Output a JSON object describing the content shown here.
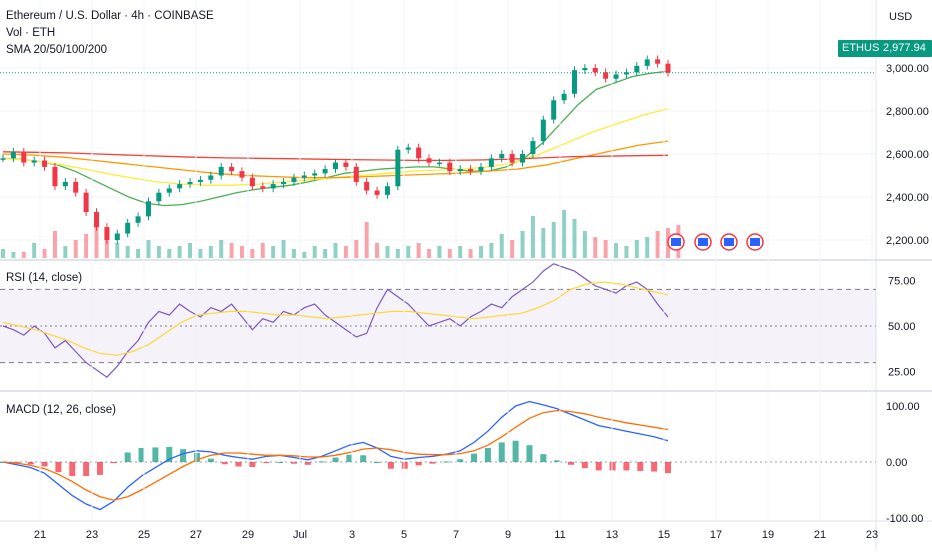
{
  "header": {
    "title": "Ethereum / U.S. Dollar · 4h · COINBASE",
    "volume_label": "Vol · ETH",
    "sma_label": "SMA 20/50/100/200",
    "currency": "USD"
  },
  "price_tags": {
    "symbol": "ETHUSD",
    "last": "2,977.94"
  },
  "rsi_panel": {
    "label": "RSI (14, close)"
  },
  "macd_panel": {
    "label": "MACD (12, 26, close)"
  },
  "colors": {
    "up": "#089981",
    "down": "#f23645",
    "sma20": "#4caf50",
    "sma50": "#ffeb3b",
    "sma100": "#ff9800",
    "sma200": "#f44336",
    "rsi": "#7e57c2",
    "rsi_ma": "#fdd835",
    "macd": "#2962ff",
    "signal": "#ff6d00"
  },
  "chart_data": [
    {
      "type": "candlestick",
      "title": "Ethereum / U.S. Dollar · 4h · COINBASE",
      "x_ticks": [
        "21",
        "23",
        "25",
        "27",
        "29",
        "Jul",
        "3",
        "5",
        "7",
        "9",
        "11",
        "13",
        "15",
        "17",
        "19",
        "21",
        "23"
      ],
      "y_ticks": [
        "2,200.00",
        "2,400.00",
        "2,600.00",
        "2,800.00",
        "3,000.00"
      ],
      "ylim": [
        2060,
        3060
      ],
      "last_price": 2977.94,
      "close_series": [
        2580,
        2610,
        2560,
        2570,
        2540,
        2450,
        2470,
        2420,
        2330,
        2260,
        2200,
        2230,
        2280,
        2310,
        2380,
        2420,
        2440,
        2460,
        2470,
        2480,
        2500,
        2540,
        2520,
        2490,
        2450,
        2440,
        2460,
        2470,
        2490,
        2500,
        2510,
        2530,
        2560,
        2540,
        2470,
        2430,
        2410,
        2450,
        2620,
        2630,
        2580,
        2560,
        2560,
        2520,
        2530,
        2520,
        2540,
        2580,
        2600,
        2560,
        2600,
        2660,
        2760,
        2850,
        2880,
        2990,
        3000,
        2980,
        2950,
        2970,
        2980,
        3010,
        3040,
        3020,
        2978
      ],
      "series": [
        {
          "name": "SMA 20",
          "values": [
            2580,
            2575,
            2565,
            2550,
            2520,
            2480,
            2440,
            2400,
            2370,
            2360,
            2365,
            2380,
            2400,
            2420,
            2435,
            2445,
            2455,
            2470,
            2490,
            2510,
            2520,
            2530,
            2535,
            2540,
            2540,
            2530,
            2520,
            2520,
            2540,
            2580,
            2650,
            2740,
            2830,
            2900,
            2930,
            2960,
            2975,
            2985
          ]
        },
        {
          "name": "SMA 50",
          "values": [
            2580,
            2570,
            2555,
            2535,
            2510,
            2490,
            2470,
            2460,
            2455,
            2455,
            2460,
            2470,
            2480,
            2490,
            2500,
            2510,
            2520,
            2525,
            2530,
            2540,
            2560,
            2600,
            2650,
            2700,
            2740,
            2780,
            2810
          ]
        },
        {
          "name": "SMA 100",
          "values": [
            2600,
            2595,
            2585,
            2570,
            2555,
            2540,
            2525,
            2510,
            2500,
            2495,
            2490,
            2490,
            2495,
            2500,
            2505,
            2510,
            2520,
            2530,
            2550,
            2580,
            2610,
            2640,
            2660
          ]
        },
        {
          "name": "SMA 200",
          "values": [
            2610,
            2608,
            2605,
            2600,
            2595,
            2590,
            2585,
            2582,
            2580,
            2578,
            2576,
            2574,
            2572,
            2570,
            2570,
            2572,
            2576,
            2582,
            2588,
            2590,
            2592,
            2594
          ]
        }
      ],
      "volume": [
        3,
        2,
        2,
        5,
        3,
        9,
        4,
        6,
        8,
        12,
        7,
        5,
        4,
        3,
        6,
        4,
        3,
        4,
        5,
        3,
        4,
        6,
        5,
        4,
        3,
        5,
        4,
        6,
        3,
        2,
        4,
        3,
        5,
        4,
        6,
        12,
        5,
        4,
        3,
        4,
        5,
        3,
        4,
        3,
        4,
        3,
        4,
        5,
        8,
        6,
        9,
        14,
        10,
        12,
        16,
        13,
        9,
        7,
        6,
        5,
        4,
        6,
        7,
        9,
        10,
        11
      ]
    },
    {
      "type": "line",
      "title": "RSI (14, close)",
      "y_ticks": [
        "25.00",
        "50.00",
        "75.00"
      ],
      "ylim": [
        15,
        85
      ],
      "bands": [
        30,
        70
      ],
      "series": [
        {
          "name": "RSI",
          "values": [
            50,
            48,
            45,
            50,
            46,
            38,
            42,
            36,
            30,
            26,
            22,
            28,
            36,
            42,
            52,
            58,
            56,
            62,
            58,
            55,
            60,
            58,
            62,
            55,
            48,
            54,
            52,
            58,
            56,
            60,
            62,
            56,
            52,
            48,
            44,
            46,
            60,
            70,
            66,
            62,
            56,
            50,
            52,
            54,
            50,
            55,
            58,
            62,
            60,
            66,
            70,
            74,
            80,
            84,
            82,
            80,
            76,
            72,
            70,
            68,
            72,
            74,
            70,
            62,
            55
          ]
        },
        {
          "name": "RSI MA",
          "values": [
            52,
            50,
            48,
            45,
            42,
            38,
            35,
            34,
            36,
            40,
            46,
            52,
            56,
            57,
            58,
            58,
            57,
            56,
            56,
            55,
            54,
            55,
            56,
            57,
            58,
            58,
            57,
            56,
            55,
            54,
            55,
            56,
            57,
            60,
            64,
            70,
            73,
            74,
            73,
            71,
            69,
            67
          ]
        }
      ]
    },
    {
      "type": "histogram",
      "title": "MACD (12, 26, close)",
      "y_ticks": [
        "100.00",
        "0.00",
        "-100.00"
      ],
      "ylim": [
        -110,
        120
      ],
      "series": [
        {
          "name": "MACD",
          "values": [
            0,
            -5,
            -10,
            -20,
            -40,
            -60,
            -75,
            -85,
            -70,
            -45,
            -25,
            -10,
            5,
            15,
            20,
            18,
            12,
            8,
            5,
            10,
            12,
            8,
            4,
            10,
            20,
            30,
            35,
            25,
            10,
            5,
            8,
            10,
            14,
            20,
            35,
            55,
            80,
            100,
            108,
            102,
            95,
            85,
            75,
            65,
            60,
            55,
            50,
            45,
            38
          ]
        },
        {
          "name": "Signal",
          "values": [
            0,
            -2,
            -6,
            -12,
            -22,
            -35,
            -50,
            -62,
            -68,
            -62,
            -50,
            -36,
            -22,
            -8,
            4,
            12,
            16,
            16,
            14,
            12,
            12,
            11,
            9,
            9,
            12,
            17,
            23,
            25,
            22,
            17,
            14,
            13,
            13,
            15,
            20,
            30,
            45,
            62,
            78,
            88,
            92,
            90,
            86,
            80,
            75,
            70,
            66,
            62,
            58
          ]
        }
      ],
      "histogram": [
        0,
        -3,
        -4,
        -8,
        -18,
        -25,
        -25,
        -23,
        -2,
        17,
        25,
        26,
        27,
        23,
        16,
        6,
        -4,
        -8,
        -9,
        -2,
        0,
        -3,
        -5,
        1,
        8,
        13,
        12,
        0,
        -12,
        -12,
        -6,
        -3,
        1,
        5,
        15,
        25,
        35,
        38,
        30,
        14,
        3,
        -5,
        -11,
        -15,
        -15,
        -15,
        -16,
        -17,
        -20
      ]
    }
  ]
}
